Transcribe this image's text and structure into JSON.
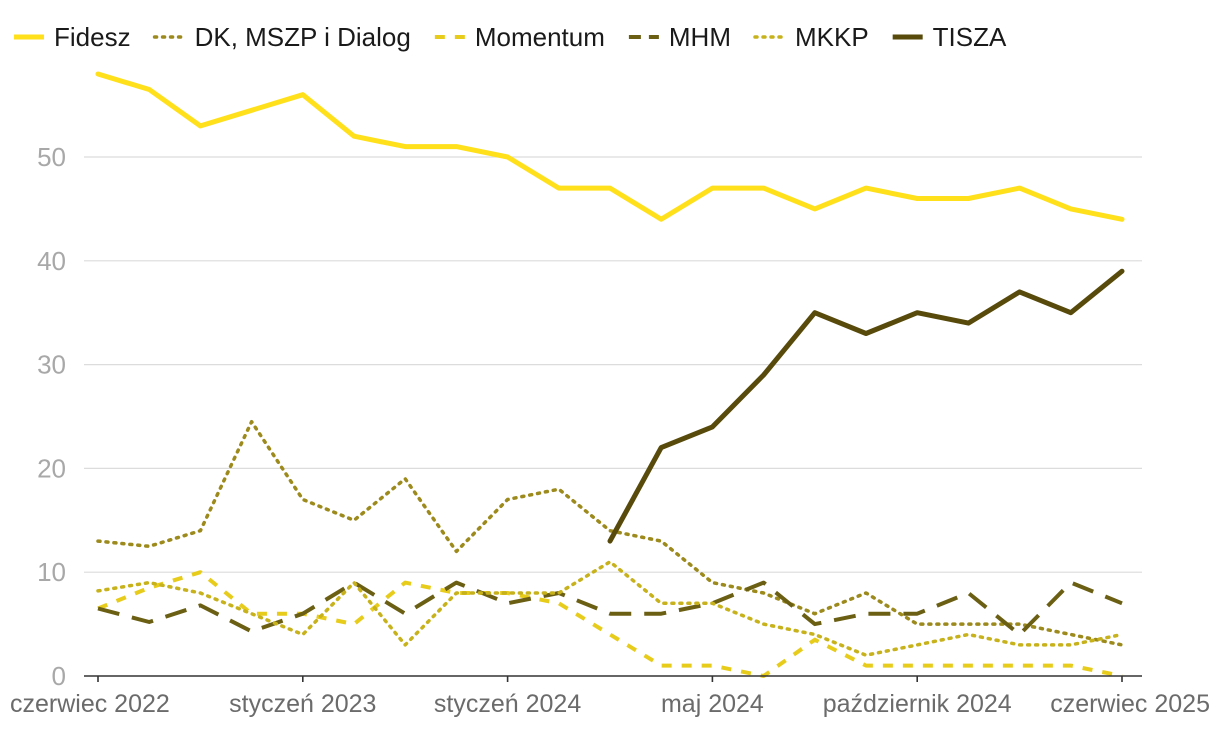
{
  "chart_data": {
    "type": "line",
    "title": "",
    "xlabel": "",
    "ylabel": "",
    "ylim": [
      0,
      60
    ],
    "yticks": [
      0,
      10,
      20,
      30,
      40,
      50
    ],
    "grid": true,
    "legend_position": "top",
    "x": [
      0,
      1,
      2,
      3,
      4,
      5,
      6,
      7,
      8,
      9,
      10,
      11,
      12,
      13,
      14,
      15,
      16,
      17,
      18,
      19,
      20
    ],
    "xtick_labels": [
      {
        "x": 0,
        "label": "czerwiec 2022"
      },
      {
        "x": 4,
        "label": "styczeń 2023"
      },
      {
        "x": 8,
        "label": "styczeń 2024"
      },
      {
        "x": 12,
        "label": "maj 2024"
      },
      {
        "x": 16,
        "label": "październik 2024"
      },
      {
        "x": 20,
        "label": "czerwiec 2025"
      }
    ],
    "series": [
      {
        "name": "Fidesz",
        "color": "#ffe01b",
        "dash": "solid",
        "width": 5,
        "values": [
          58,
          56.5,
          53,
          54.5,
          56,
          52,
          51,
          51,
          50,
          47,
          47,
          44,
          47,
          47,
          45,
          47,
          46,
          46,
          47,
          45,
          44
        ]
      },
      {
        "name": "DK, MSZP i Dialog",
        "color": "#9c8a1c",
        "dash": "dotted",
        "width": 3.5,
        "values": [
          13,
          12.5,
          14,
          24.5,
          17,
          15,
          19,
          12,
          17,
          18,
          14,
          13,
          9,
          8,
          6,
          8,
          5,
          5,
          5,
          4,
          3
        ]
      },
      {
        "name": "Momentum",
        "color": "#e8cc1c",
        "dash": "dashed",
        "width": 4,
        "values": [
          6.5,
          8.5,
          10,
          6,
          6,
          5,
          9,
          8,
          8,
          7,
          4,
          1,
          1,
          0,
          3.5,
          1,
          1,
          1,
          1,
          1,
          0
        ]
      },
      {
        "name": "MHM",
        "color": "#6b5f14",
        "dash": "longdash",
        "width": 4,
        "values": [
          6.5,
          5.2,
          6.8,
          4.3,
          6,
          9,
          6,
          9,
          7,
          8,
          6,
          6,
          7,
          9,
          5,
          6,
          6,
          8,
          4,
          9,
          7
        ]
      },
      {
        "name": "MKKP",
        "color": "#c7b21c",
        "dash": "dotted",
        "width": 3.5,
        "values": [
          8.2,
          9,
          8,
          6,
          4,
          9,
          3,
          8,
          8,
          8,
          11,
          7,
          7,
          5,
          4,
          2,
          3,
          4,
          3,
          3,
          4
        ]
      },
      {
        "name": "TISZA",
        "color": "#574a0a",
        "dash": "solid",
        "width": 5,
        "values": [
          null,
          null,
          null,
          null,
          null,
          null,
          null,
          null,
          null,
          null,
          13,
          22,
          24,
          29,
          35,
          33,
          35,
          34,
          37,
          35,
          39
        ]
      }
    ]
  }
}
